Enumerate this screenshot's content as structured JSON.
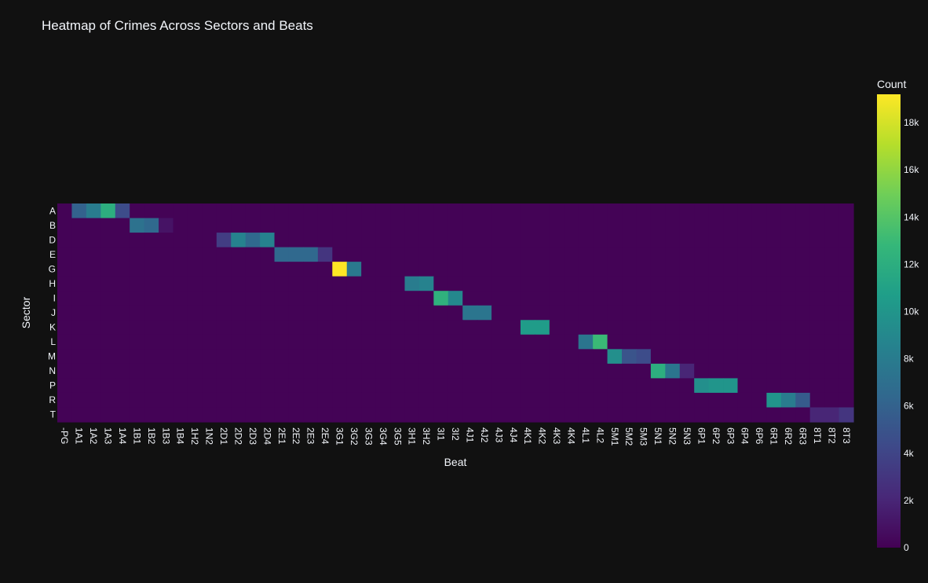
{
  "chart_data": {
    "type": "heatmap",
    "title": "Heatmap of Crimes Across Sectors and Beats",
    "xlabel": "Beat",
    "ylabel": "Sector",
    "colorbar_title": "Count",
    "colorscale": "Viridis",
    "zmin": 0,
    "zmax": 19200,
    "colorbar_ticks": [
      0,
      2000,
      4000,
      6000,
      8000,
      10000,
      12000,
      14000,
      16000,
      18000
    ],
    "colorbar_tick_labels": [
      "0",
      "2k",
      "4k",
      "6k",
      "8k",
      "10k",
      "12k",
      "14k",
      "16k",
      "18k"
    ],
    "x": [
      "-PG",
      "1A1",
      "1A2",
      "1A3",
      "1A4",
      "1B1",
      "1B2",
      "1B3",
      "1B4",
      "1H2",
      "1N2",
      "2D1",
      "2D2",
      "2D3",
      "2D4",
      "2E1",
      "2E2",
      "2E3",
      "2E4",
      "3G1",
      "3G2",
      "3G3",
      "3G4",
      "3G5",
      "3H1",
      "3H2",
      "3I1",
      "3I2",
      "4J1",
      "4J2",
      "4J3",
      "4J4",
      "4K1",
      "4K2",
      "4K3",
      "4K4",
      "4L1",
      "4L2",
      "5M1",
      "5M2",
      "5M3",
      "5N1",
      "5N2",
      "5N3",
      "6P1",
      "6P2",
      "6P3",
      "6P4",
      "6P6",
      "6R1",
      "6R2",
      "6R3",
      "8T1",
      "8T2",
      "8T3"
    ],
    "y": [
      "A",
      "B",
      "D",
      "E",
      "G",
      "H",
      "I",
      "J",
      "K",
      "L",
      "M",
      "N",
      "P",
      "R",
      "T"
    ],
    "baseline": 100,
    "cells": [
      {
        "y": "A",
        "x": "1A1",
        "z": 6000
      },
      {
        "y": "A",
        "x": "1A2",
        "z": 8000
      },
      {
        "y": "A",
        "x": "1A3",
        "z": 12000
      },
      {
        "y": "A",
        "x": "1A4",
        "z": 4500
      },
      {
        "y": "B",
        "x": "1B1",
        "z": 7200
      },
      {
        "y": "B",
        "x": "1B2",
        "z": 6500
      },
      {
        "y": "B",
        "x": "1B3",
        "z": 1000
      },
      {
        "y": "D",
        "x": "2D1",
        "z": 3500
      },
      {
        "y": "D",
        "x": "2D2",
        "z": 8500
      },
      {
        "y": "D",
        "x": "2D3",
        "z": 6500
      },
      {
        "y": "D",
        "x": "2D4",
        "z": 8500
      },
      {
        "y": "E",
        "x": "2E1",
        "z": 6500
      },
      {
        "y": "E",
        "x": "2E2",
        "z": 6500
      },
      {
        "y": "E",
        "x": "2E3",
        "z": 6500
      },
      {
        "y": "E",
        "x": "2E4",
        "z": 3000
      },
      {
        "y": "G",
        "x": "3G1",
        "z": 19200
      },
      {
        "y": "G",
        "x": "3G2",
        "z": 7800
      },
      {
        "y": "H",
        "x": "3H1",
        "z": 8000
      },
      {
        "y": "H",
        "x": "3H2",
        "z": 8500
      },
      {
        "y": "I",
        "x": "3I1",
        "z": 12300
      },
      {
        "y": "I",
        "x": "3I2",
        "z": 9000
      },
      {
        "y": "J",
        "x": "4J1",
        "z": 7500
      },
      {
        "y": "J",
        "x": "4J2",
        "z": 7500
      },
      {
        "y": "K",
        "x": "4K1",
        "z": 10500
      },
      {
        "y": "K",
        "x": "4K2",
        "z": 10500
      },
      {
        "y": "L",
        "x": "4L1",
        "z": 7500
      },
      {
        "y": "L",
        "x": "4L2",
        "z": 13000
      },
      {
        "y": "M",
        "x": "5M1",
        "z": 9500
      },
      {
        "y": "M",
        "x": "5M2",
        "z": 5000
      },
      {
        "y": "M",
        "x": "5M3",
        "z": 4500
      },
      {
        "y": "N",
        "x": "5N1",
        "z": 12000
      },
      {
        "y": "N",
        "x": "5N2",
        "z": 7500
      },
      {
        "y": "N",
        "x": "5N3",
        "z": 2000
      },
      {
        "y": "P",
        "x": "6P1",
        "z": 9500
      },
      {
        "y": "P",
        "x": "6P2",
        "z": 10000
      },
      {
        "y": "P",
        "x": "6P3",
        "z": 10000
      },
      {
        "y": "R",
        "x": "6R1",
        "z": 10000
      },
      {
        "y": "R",
        "x": "6R2",
        "z": 8000
      },
      {
        "y": "R",
        "x": "6R3",
        "z": 5500
      },
      {
        "y": "T",
        "x": "8T1",
        "z": 2000
      },
      {
        "y": "T",
        "x": "8T2",
        "z": 2000
      },
      {
        "y": "T",
        "x": "8T3",
        "z": 3000
      }
    ],
    "grid": false,
    "colorbar_placement": "right"
  }
}
